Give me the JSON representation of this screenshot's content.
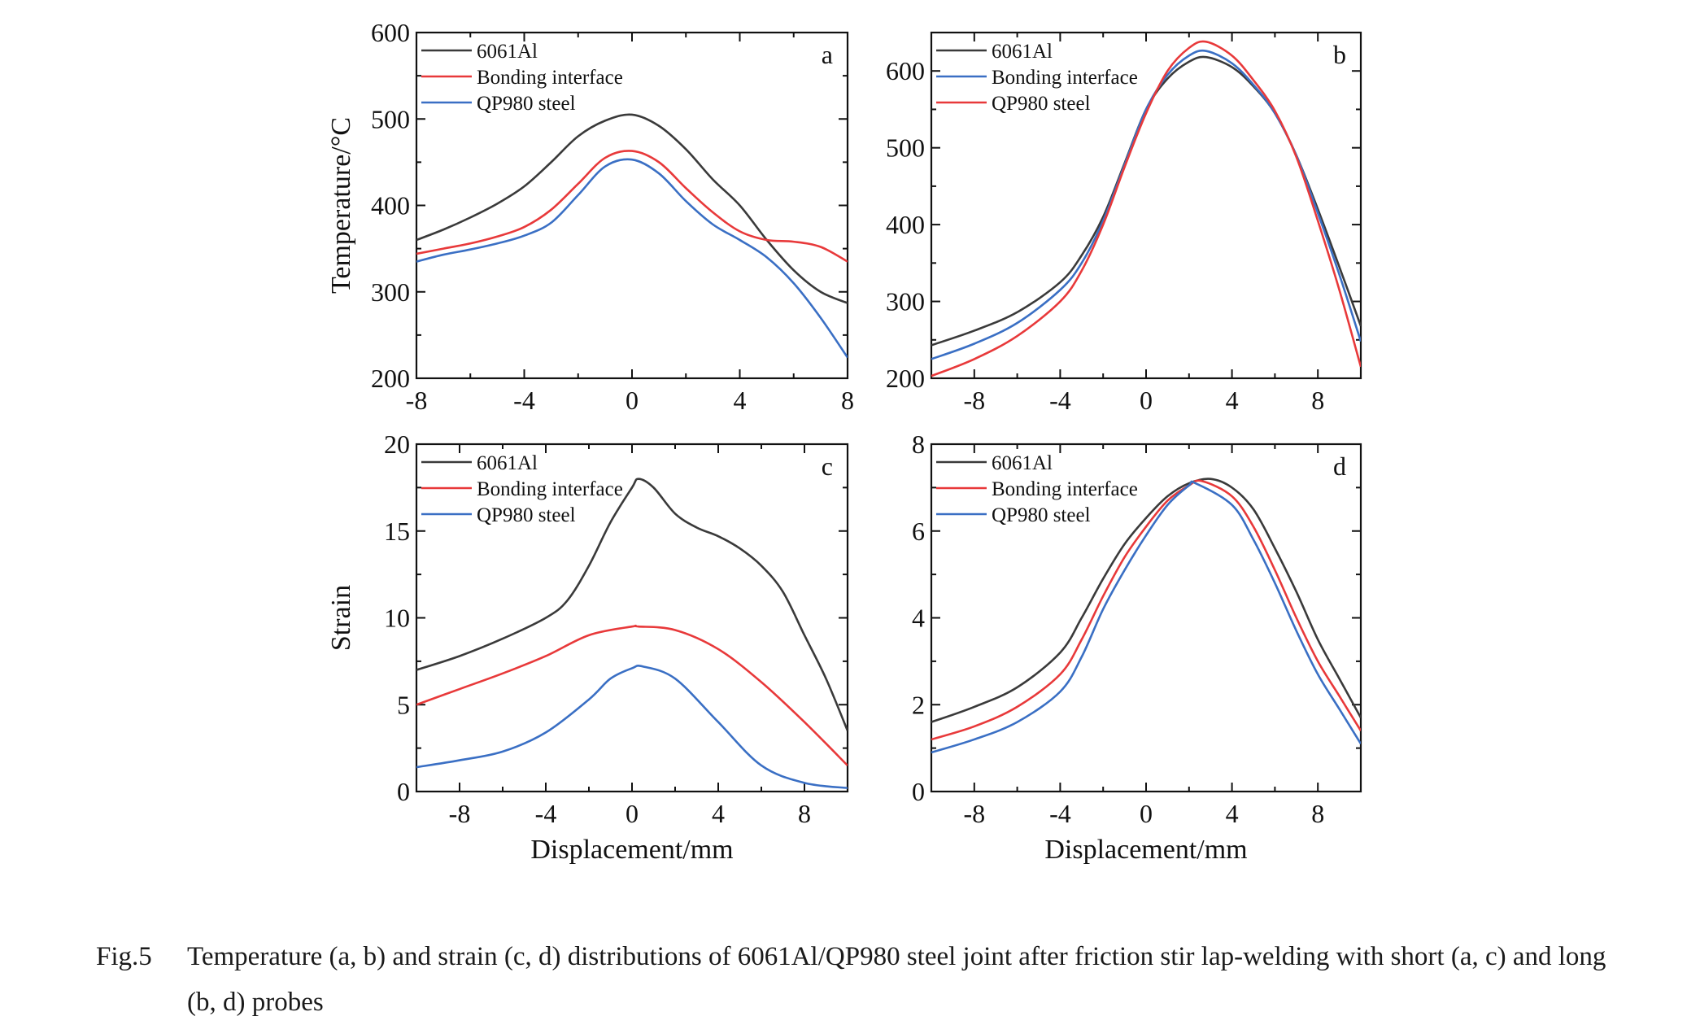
{
  "chart_data": [
    {
      "id": "a",
      "type": "line",
      "panel_letter": "a",
      "ylabel": "Temperature/°C",
      "xlabel": "",
      "xlim": [
        -8,
        8
      ],
      "ylim": [
        200,
        600
      ],
      "xticks": [
        -8,
        -4,
        0,
        4,
        8
      ],
      "yticks": [
        200,
        300,
        400,
        500,
        600
      ],
      "legend_position": "top-left",
      "series": [
        {
          "name": "6061Al",
          "color": "#3a3a3a",
          "x": [
            -8,
            -7,
            -6,
            -5,
            -4,
            -3,
            -2,
            -1,
            0,
            1,
            2,
            3,
            4,
            5,
            6,
            7,
            8
          ],
          "y": [
            360,
            372,
            386,
            402,
            422,
            450,
            480,
            498,
            505,
            492,
            465,
            430,
            400,
            360,
            325,
            300,
            287
          ]
        },
        {
          "name": "Bonding interface",
          "color": "#e8393a",
          "x": [
            -8,
            -7,
            -6,
            -5,
            -4,
            -3,
            -2,
            -1,
            0,
            1,
            2,
            3,
            4,
            5,
            6,
            7,
            8
          ],
          "y": [
            344,
            350,
            356,
            364,
            375,
            395,
            425,
            455,
            463,
            450,
            420,
            392,
            370,
            360,
            358,
            352,
            335
          ]
        },
        {
          "name": "QP980 steel",
          "color": "#3a6fc4",
          "x": [
            -8,
            -7,
            -6,
            -5,
            -4,
            -3,
            -2,
            -1,
            0,
            1,
            2,
            3,
            4,
            5,
            6,
            7,
            8
          ],
          "y": [
            335,
            343,
            349,
            356,
            365,
            380,
            412,
            445,
            453,
            437,
            405,
            378,
            360,
            340,
            310,
            270,
            224
          ]
        }
      ]
    },
    {
      "id": "b",
      "type": "line",
      "panel_letter": "b",
      "ylabel": "",
      "xlabel": "",
      "xlim": [
        -10,
        10
      ],
      "ylim": [
        200,
        650
      ],
      "xticks": [
        -8,
        -4,
        0,
        4,
        8
      ],
      "yticks": [
        200,
        300,
        400,
        500,
        600
      ],
      "legend_position": "top-left",
      "series": [
        {
          "name": "6061Al",
          "color": "#3a3a3a",
          "x": [
            -10,
            -8,
            -6,
            -4,
            -3,
            -2,
            -1,
            0,
            1,
            2,
            2.8,
            4,
            5,
            6,
            7,
            8,
            9,
            10
          ],
          "y": [
            243,
            262,
            286,
            325,
            360,
            410,
            480,
            550,
            590,
            612,
            618,
            605,
            580,
            545,
            490,
            420,
            345,
            268
          ]
        },
        {
          "name": "Bonding interface",
          "color": "#3a6fc4",
          "x": [
            -10,
            -8,
            -6,
            -4,
            -3,
            -2,
            -1,
            0,
            1,
            2,
            2.8,
            4,
            5,
            6,
            7,
            8,
            9,
            10
          ],
          "y": [
            225,
            245,
            272,
            315,
            350,
            405,
            478,
            550,
            595,
            620,
            626,
            610,
            582,
            545,
            490,
            415,
            335,
            248
          ]
        },
        {
          "name": "QP980 steel",
          "color": "#e8393a",
          "x": [
            -10,
            -8,
            -6,
            -4,
            -3,
            -2,
            -1,
            0,
            1,
            2,
            2.8,
            4,
            5,
            6,
            7,
            8,
            9,
            10
          ],
          "y": [
            203,
            225,
            255,
            300,
            340,
            400,
            475,
            545,
            600,
            630,
            638,
            620,
            588,
            548,
            488,
            405,
            315,
            215
          ]
        }
      ]
    },
    {
      "id": "c",
      "type": "line",
      "panel_letter": "c",
      "ylabel": "Strain",
      "xlabel": "Displacement/mm",
      "xlim": [
        -10,
        10
      ],
      "ylim": [
        0,
        20
      ],
      "xticks": [
        -8,
        -4,
        0,
        4,
        8
      ],
      "yticks": [
        0,
        5,
        10,
        15,
        20
      ],
      "legend_position": "top-left",
      "series": [
        {
          "name": "6061Al",
          "color": "#3a3a3a",
          "x": [
            -10,
            -8,
            -6,
            -4,
            -3,
            -2,
            -1,
            0,
            0.3,
            1,
            2,
            3,
            4,
            5,
            6,
            7,
            8,
            9,
            10
          ],
          "y": [
            7,
            7.8,
            8.8,
            10,
            11,
            13,
            15.5,
            17.5,
            18,
            17.5,
            16,
            15.2,
            14.7,
            14,
            13,
            11.5,
            9,
            6.5,
            3.5
          ]
        },
        {
          "name": "Bonding interface",
          "color": "#e8393a",
          "x": [
            -10,
            -8,
            -6,
            -4,
            -2,
            0,
            0.3,
            2,
            4,
            6,
            8,
            10
          ],
          "y": [
            5,
            5.9,
            6.8,
            7.8,
            9,
            9.5,
            9.5,
            9.3,
            8.2,
            6.3,
            4,
            1.5
          ]
        },
        {
          "name": "QP980 steel",
          "color": "#3a6fc4",
          "x": [
            -10,
            -8,
            -6,
            -4,
            -2,
            -1,
            0,
            0.5,
            2,
            4,
            6,
            8,
            10
          ],
          "y": [
            1.4,
            1.8,
            2.3,
            3.4,
            5.3,
            6.5,
            7.1,
            7.2,
            6.5,
            4,
            1.5,
            0.5,
            0.2
          ]
        }
      ]
    },
    {
      "id": "d",
      "type": "line",
      "panel_letter": "d",
      "ylabel": "",
      "xlabel": "Displacement/mm",
      "xlim": [
        -10,
        10
      ],
      "ylim": [
        0,
        8
      ],
      "xticks": [
        -8,
        -4,
        0,
        4,
        8
      ],
      "yticks": [
        0,
        2,
        4,
        6,
        8
      ],
      "legend_position": "top-left",
      "series": [
        {
          "name": "6061Al",
          "color": "#3a3a3a",
          "x": [
            -10,
            -8,
            -6,
            -4,
            -3,
            -2,
            -1,
            0,
            1,
            2,
            3,
            4,
            5,
            6,
            7,
            8,
            9,
            10
          ],
          "y": [
            1.6,
            1.95,
            2.4,
            3.2,
            4,
            4.9,
            5.7,
            6.3,
            6.8,
            7.1,
            7.2,
            7.0,
            6.5,
            5.6,
            4.6,
            3.5,
            2.6,
            1.7
          ]
        },
        {
          "name": "Bonding interface",
          "color": "#e8393a",
          "x": [
            -10,
            -8,
            -6,
            -4,
            -3,
            -2,
            -1,
            0,
            1,
            2,
            2.6,
            4,
            5,
            6,
            7,
            8,
            9,
            10
          ],
          "y": [
            1.2,
            1.5,
            1.95,
            2.7,
            3.5,
            4.5,
            5.4,
            6.1,
            6.7,
            7.05,
            7.15,
            6.8,
            6.1,
            5.1,
            4.0,
            3.0,
            2.2,
            1.4
          ]
        },
        {
          "name": "QP980 steel",
          "color": "#3a6fc4",
          "x": [
            -10,
            -8,
            -6,
            -4,
            -3,
            -2,
            -1,
            0,
            1,
            2,
            2.3,
            4,
            5,
            6,
            7,
            8,
            9,
            10
          ],
          "y": [
            0.9,
            1.2,
            1.6,
            2.3,
            3.1,
            4.2,
            5.1,
            5.9,
            6.6,
            7.05,
            7.1,
            6.6,
            5.8,
            4.8,
            3.7,
            2.7,
            1.9,
            1.1
          ]
        }
      ]
    }
  ],
  "caption": {
    "label": "Fig.5",
    "text": "Temperature (a, b) and strain (c, d) distributions of 6061Al/QP980 steel joint after friction stir lap-welding with short (a, c) and long (b, d) probes"
  }
}
